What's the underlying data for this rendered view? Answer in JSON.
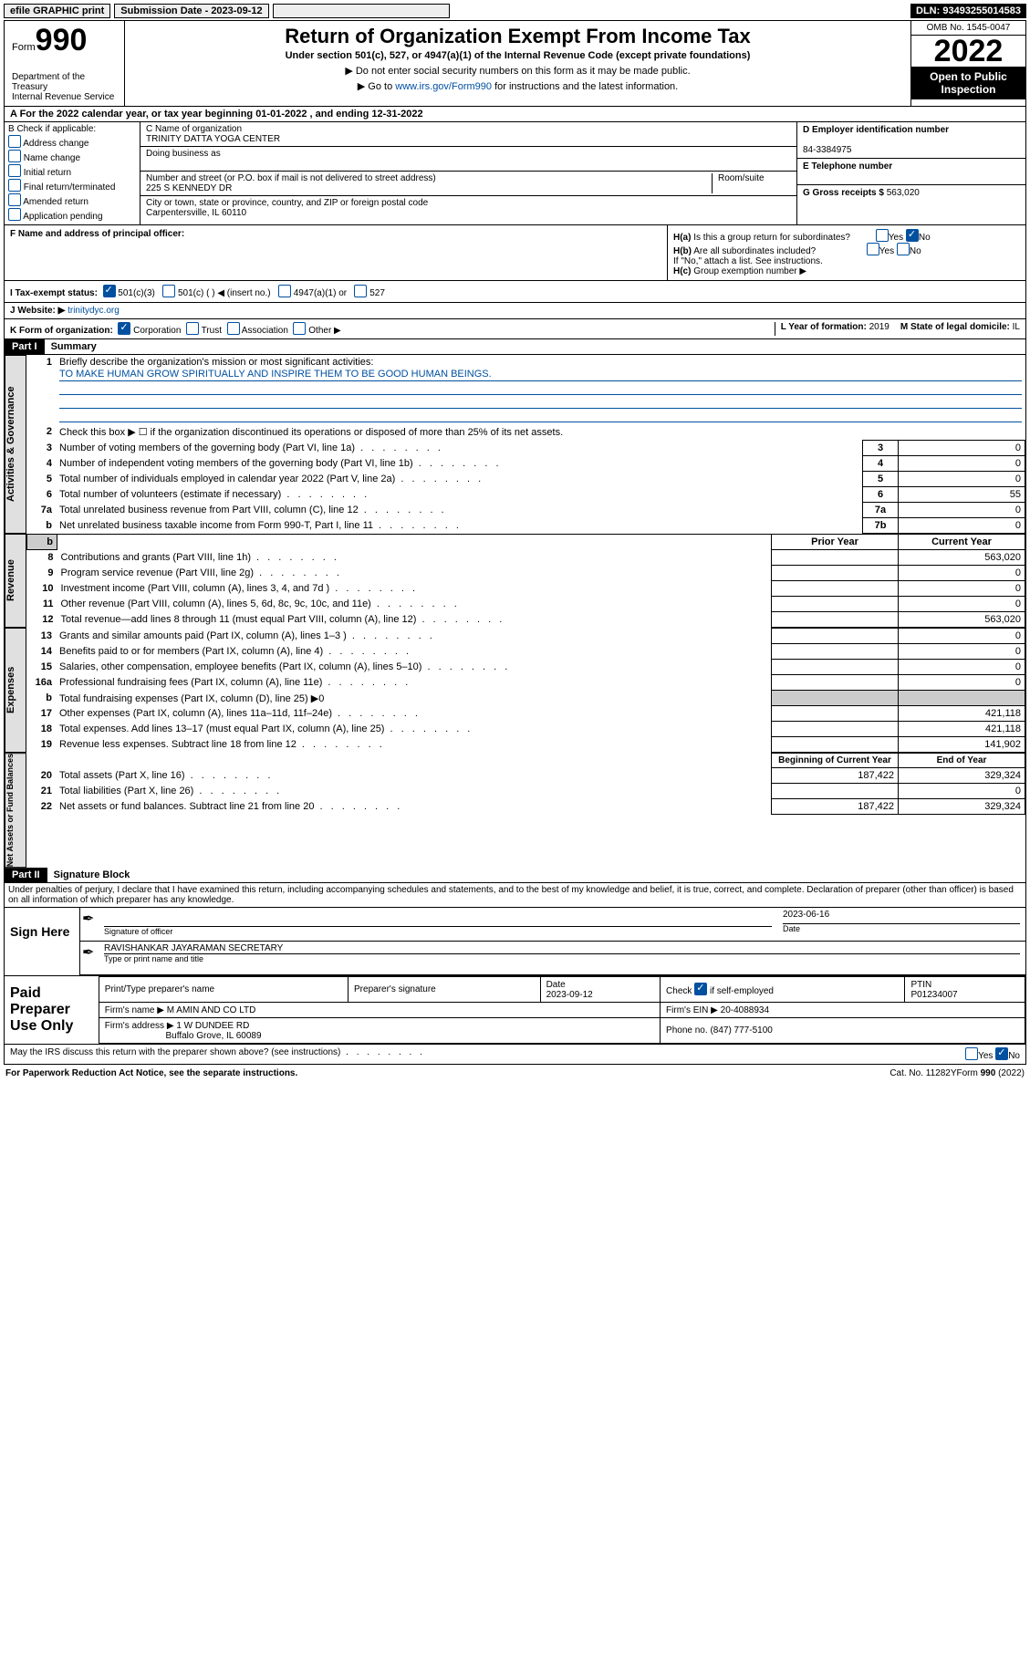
{
  "top": {
    "efile": "efile GRAPHIC print",
    "submission_label": "Submission Date - 2023-09-12",
    "dln": "DLN: 93493255014583"
  },
  "header": {
    "form_word": "Form",
    "form_no": "990",
    "dept": "Department of the Treasury",
    "irs": "Internal Revenue Service",
    "title": "Return of Organization Exempt From Income Tax",
    "subtitle": "Under section 501(c), 527, or 4947(a)(1) of the Internal Revenue Code (except private foundations)",
    "note1": "▶ Do not enter social security numbers on this form as it may be made public.",
    "note2_pre": "▶ Go to ",
    "note2_link": "www.irs.gov/Form990",
    "note2_post": " for instructions and the latest information.",
    "omb": "OMB No. 1545-0047",
    "year": "2022",
    "open": "Open to Public Inspection"
  },
  "bar_a": "A For the 2022 calendar year, or tax year beginning 01-01-2022   , and ending 12-31-2022",
  "section_b": {
    "label": "B Check if applicable:",
    "items": [
      "Address change",
      "Name change",
      "Initial return",
      "Final return/terminated",
      "Amended return",
      "Application pending"
    ]
  },
  "section_c": {
    "name_label": "C Name of organization",
    "name": "TRINITY DATTA YOGA CENTER",
    "dba": "Doing business as",
    "street_label": "Number and street (or P.O. box if mail is not delivered to street address)",
    "room": "Room/suite",
    "street": "225 S KENNEDY DR",
    "city_label": "City or town, state or province, country, and ZIP or foreign postal code",
    "city": "Carpentersville, IL  60110"
  },
  "section_d": {
    "ein_label": "D Employer identification number",
    "ein": "84-3384975",
    "phone_label": "E Telephone number",
    "gross_label": "G Gross receipts $",
    "gross": "563,020"
  },
  "section_f": {
    "label": "F Name and address of principal officer:"
  },
  "section_h": {
    "ha": "H(a)  Is this a group return for subordinates?",
    "hb": "H(b)  Are all subordinates included?",
    "hb_note": "If \"No,\" attach a list. See instructions.",
    "hc": "H(c)  Group exemption number ▶",
    "yes": "Yes",
    "no": "No"
  },
  "row_i": {
    "label": "I   Tax-exempt status:",
    "opts": [
      "501(c)(3)",
      "501(c) (  ) ◀ (insert no.)",
      "4947(a)(1) or",
      "527"
    ]
  },
  "row_j": {
    "label": "J   Website: ▶",
    "value": "trinitydyc.org"
  },
  "row_k": {
    "label": "K Form of organization:",
    "opts": [
      "Corporation",
      "Trust",
      "Association",
      "Other ▶"
    ],
    "l_label": "L Year of formation:",
    "l_val": "2019",
    "m_label": "M State of legal domicile:",
    "m_val": "IL"
  },
  "part1": {
    "part": "Part I",
    "title": "Summary",
    "line1_label": "Briefly describe the organization's mission or most significant activities:",
    "mission": "TO MAKE HUMAN GROW SPIRITUALLY AND INSPIRE THEM TO BE GOOD HUMAN BEINGS.",
    "line2": "Check this box ▶ ☐  if the organization discontinued its operations or disposed of more than 25% of its net assets.",
    "lines_gov": [
      {
        "n": "3",
        "label": "Number of voting members of the governing body (Part VI, line 1a)",
        "box": "3",
        "val": "0"
      },
      {
        "n": "4",
        "label": "Number of independent voting members of the governing body (Part VI, line 1b)",
        "box": "4",
        "val": "0"
      },
      {
        "n": "5",
        "label": "Total number of individuals employed in calendar year 2022 (Part V, line 2a)",
        "box": "5",
        "val": "0"
      },
      {
        "n": "6",
        "label": "Total number of volunteers (estimate if necessary)",
        "box": "6",
        "val": "55"
      },
      {
        "n": "7a",
        "label": "Total unrelated business revenue from Part VIII, column (C), line 12",
        "box": "7a",
        "val": "0"
      },
      {
        "n": "b",
        "label": "Net unrelated business taxable income from Form 990-T, Part I, line 11",
        "box": "7b",
        "val": "0"
      }
    ],
    "prior": "Prior Year",
    "current": "Current Year",
    "lines_rev": [
      {
        "n": "8",
        "label": "Contributions and grants (Part VIII, line 1h)",
        "prior": "",
        "cur": "563,020"
      },
      {
        "n": "9",
        "label": "Program service revenue (Part VIII, line 2g)",
        "prior": "",
        "cur": "0"
      },
      {
        "n": "10",
        "label": "Investment income (Part VIII, column (A), lines 3, 4, and 7d )",
        "prior": "",
        "cur": "0"
      },
      {
        "n": "11",
        "label": "Other revenue (Part VIII, column (A), lines 5, 6d, 8c, 9c, 10c, and 11e)",
        "prior": "",
        "cur": "0"
      },
      {
        "n": "12",
        "label": "Total revenue—add lines 8 through 11 (must equal Part VIII, column (A), line 12)",
        "prior": "",
        "cur": "563,020"
      }
    ],
    "lines_exp": [
      {
        "n": "13",
        "label": "Grants and similar amounts paid (Part IX, column (A), lines 1–3 )",
        "prior": "",
        "cur": "0"
      },
      {
        "n": "14",
        "label": "Benefits paid to or for members (Part IX, column (A), line 4)",
        "prior": "",
        "cur": "0"
      },
      {
        "n": "15",
        "label": "Salaries, other compensation, employee benefits (Part IX, column (A), lines 5–10)",
        "prior": "",
        "cur": "0"
      },
      {
        "n": "16a",
        "label": "Professional fundraising fees (Part IX, column (A), line 11e)",
        "prior": "",
        "cur": "0"
      },
      {
        "n": "b",
        "label": "Total fundraising expenses (Part IX, column (D), line 25) ▶0",
        "prior": null,
        "cur": null
      },
      {
        "n": "17",
        "label": "Other expenses (Part IX, column (A), lines 11a–11d, 11f–24e)",
        "prior": "",
        "cur": "421,118"
      },
      {
        "n": "18",
        "label": "Total expenses. Add lines 13–17 (must equal Part IX, column (A), line 25)",
        "prior": "",
        "cur": "421,118"
      },
      {
        "n": "19",
        "label": "Revenue less expenses. Subtract line 18 from line 12",
        "prior": "",
        "cur": "141,902"
      }
    ],
    "begin": "Beginning of Current Year",
    "end": "End of Year",
    "lines_net": [
      {
        "n": "20",
        "label": "Total assets (Part X, line 16)",
        "prior": "187,422",
        "cur": "329,324"
      },
      {
        "n": "21",
        "label": "Total liabilities (Part X, line 26)",
        "prior": "",
        "cur": "0"
      },
      {
        "n": "22",
        "label": "Net assets or fund balances. Subtract line 21 from line 20",
        "prior": "187,422",
        "cur": "329,324"
      }
    ],
    "vert_gov": "Activities & Governance",
    "vert_rev": "Revenue",
    "vert_exp": "Expenses",
    "vert_net": "Net Assets or Fund Balances"
  },
  "part2": {
    "part": "Part II",
    "title": "Signature Block",
    "penalty": "Under penalties of perjury, I declare that I have examined this return, including accompanying schedules and statements, and to the best of my knowledge and belief, it is true, correct, and complete. Declaration of preparer (other than officer) is based on all information of which preparer has any knowledge.",
    "sign_here": "Sign Here",
    "sig_officer": "Signature of officer",
    "sig_date_label": "Date",
    "sig_date": "2023-06-16",
    "officer_name": "RAVISHANKAR JAYARAMAN  SECRETARY",
    "officer_sub": "Type or print name and title",
    "paid": "Paid Preparer Use Only",
    "prep_name_label": "Print/Type preparer's name",
    "prep_sig_label": "Preparer's signature",
    "prep_date_label": "Date",
    "prep_date": "2023-09-12",
    "check_if": "Check",
    "self_emp": "if self-employed",
    "ptin_label": "PTIN",
    "ptin": "P01234007",
    "firm_name_label": "Firm's name    ▶",
    "firm_name": "M AMIN AND CO LTD",
    "firm_ein_label": "Firm's EIN ▶",
    "firm_ein": "20-4088934",
    "firm_addr_label": "Firm's address ▶",
    "firm_addr1": "1 W DUNDEE RD",
    "firm_addr2": "Buffalo Grove, IL  60089",
    "phone_label": "Phone no.",
    "phone": "(847) 777-5100",
    "may_irs": "May the IRS discuss this return with the preparer shown above? (see instructions)"
  },
  "footer": {
    "left": "For Paperwork Reduction Act Notice, see the separate instructions.",
    "mid": "Cat. No. 11282Y",
    "right": "Form 990 (2022)"
  }
}
